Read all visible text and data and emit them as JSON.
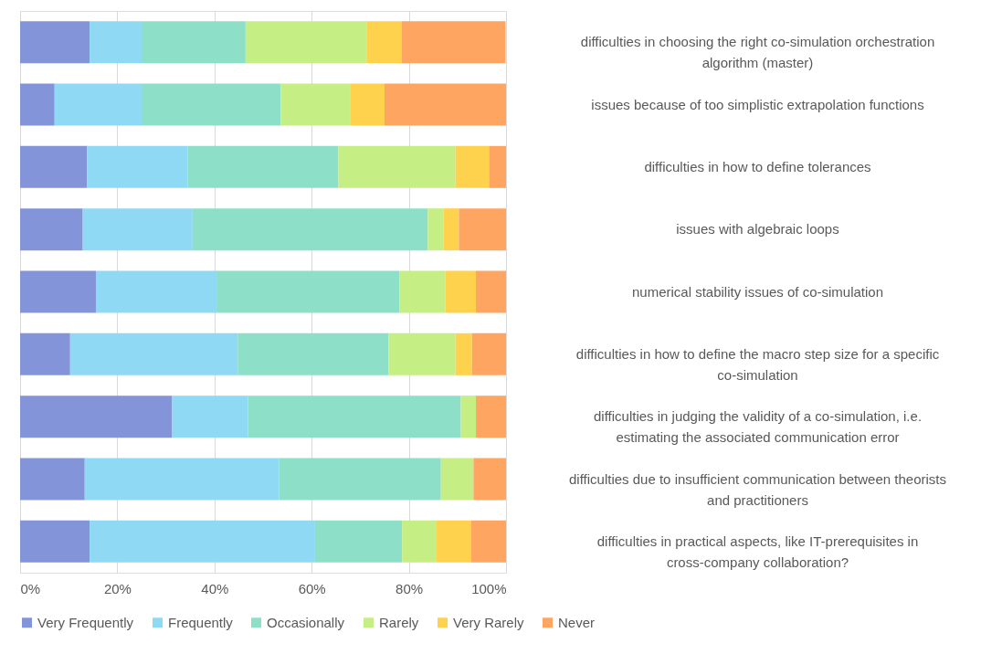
{
  "chart_data": {
    "type": "bar",
    "orientation": "horizontal",
    "stacked": true,
    "categories": [
      "difficulties in choosing the right co-simulation orchestration algorithm (master)",
      "issues because of too simplistic extrapolation functions",
      "difficulties in how to define tolerances",
      "issues with algebraic loops",
      "numerical stability issues of co-simulation",
      "difficulties in how to define the macro step size for a specific co-simulation",
      "difficulties in judging the validity of a co-simulation, i.e. estimating the associated communication error",
      "difficulties due to insufficient communication between theorists and practitioners",
      "difficulties in practical aspects, like IT-prerequisites in cross-company collaboration?"
    ],
    "series": [
      {
        "name": "Very Frequently",
        "color": "#8395d8",
        "values": [
          14.3,
          7.1,
          13.8,
          12.9,
          15.6,
          10.3,
          31.3,
          13.3,
          14.3
        ]
      },
      {
        "name": "Frequently",
        "color": "#90d9f5",
        "values": [
          10.7,
          17.9,
          20.7,
          22.6,
          25.0,
          34.5,
          15.6,
          40.0,
          46.4
        ]
      },
      {
        "name": "Occasionally",
        "color": "#8ddfc8",
        "values": [
          21.4,
          28.6,
          31.0,
          48.4,
          37.5,
          31.0,
          43.8,
          33.3,
          17.9
        ]
      },
      {
        "name": "Rarely",
        "color": "#c5ee84",
        "values": [
          25.0,
          14.3,
          24.1,
          3.2,
          9.4,
          13.8,
          3.1,
          6.7,
          7.1
        ]
      },
      {
        "name": "Very Rarely",
        "color": "#fed24c",
        "values": [
          7.1,
          7.1,
          6.9,
          3.2,
          6.3,
          3.4,
          0,
          0,
          7.1
        ]
      },
      {
        "name": "Never",
        "color": "#fea562",
        "values": [
          21.4,
          25.0,
          3.5,
          9.7,
          6.2,
          7.0,
          6.2,
          6.7,
          7.2
        ]
      }
    ],
    "xlim": [
      0,
      100
    ],
    "xticks": [
      {
        "value": 0,
        "label": "0%"
      },
      {
        "value": 20,
        "label": "20%"
      },
      {
        "value": 40,
        "label": "40%"
      },
      {
        "value": 60,
        "label": "60%"
      },
      {
        "value": 80,
        "label": "80%"
      },
      {
        "value": 100,
        "label": "100%"
      }
    ],
    "grid": "x",
    "legend": "bottom"
  }
}
